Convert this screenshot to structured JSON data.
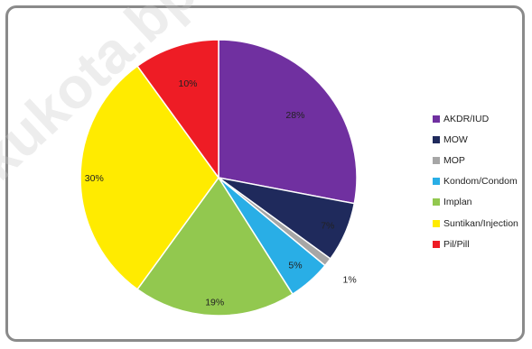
{
  "watermark": "kukota.bps.go.id",
  "chart_data": {
    "type": "pie",
    "title": "",
    "legend_position": "right",
    "slices": [
      {
        "name": "AKDR/IUD",
        "label": "28%",
        "value": 28,
        "color": "#7030a0"
      },
      {
        "name": "MOW",
        "label": "7%",
        "value": 7,
        "color": "#1f2a5c"
      },
      {
        "name": "MOP",
        "label": "1%",
        "value": 1,
        "color": "#a6a6a6"
      },
      {
        "name": "Kondom/Condom",
        "label": "5%",
        "value": 5,
        "color": "#29aee6"
      },
      {
        "name": "Implan",
        "label": "19%",
        "value": 19,
        "color": "#92c84f"
      },
      {
        "name": "Suntikan/Injection",
        "label": "30%",
        "value": 30,
        "color": "#ffeb00"
      },
      {
        "name": "Pil/Pill",
        "label": "10%",
        "value": 10,
        "color": "#ee1c25"
      }
    ]
  }
}
